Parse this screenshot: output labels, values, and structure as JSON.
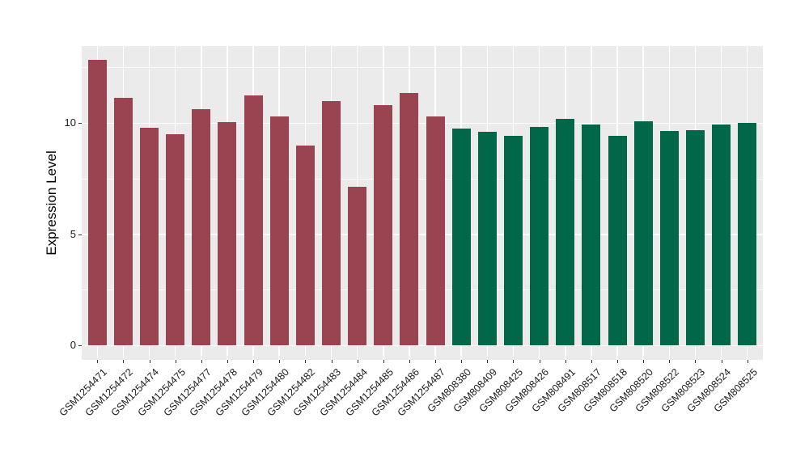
{
  "figure": {
    "background": "#FFFFFF",
    "panel_background": "#EBEBEB",
    "gridline_color": "#FFFFFF",
    "tick_color": "#333333",
    "text_color": "#1A1A1A"
  },
  "chart_data": {
    "type": "bar",
    "title": "",
    "xlabel": "",
    "ylabel": "Expression Level",
    "grid": "on",
    "legend_position": "none",
    "y_ticks": [
      0,
      5,
      10
    ],
    "y_tick_labels": [
      "0",
      "5",
      "10"
    ],
    "y_minor_ticks": [
      2.5,
      7.5,
      12.5
    ],
    "ylim": [
      0,
      13.5
    ],
    "categories": [
      "GSM1254471",
      "GSM1254472",
      "GSM1254474",
      "GSM1254475",
      "GSM1254477",
      "GSM1254478",
      "GSM1254479",
      "GSM1254480",
      "GSM1254482",
      "GSM1254483",
      "GSM1254484",
      "GSM1254485",
      "GSM1254486",
      "GSM1254487",
      "GSM808380",
      "GSM808409",
      "GSM808425",
      "GSM808426",
      "GSM808491",
      "GSM808517",
      "GSM808518",
      "GSM808520",
      "GSM808522",
      "GSM808523",
      "GSM808524",
      "GSM808525"
    ],
    "values": [
      12.85,
      11.15,
      9.8,
      9.5,
      10.65,
      10.05,
      11.25,
      10.3,
      9.0,
      11.0,
      7.15,
      10.8,
      11.35,
      10.3,
      9.75,
      9.6,
      9.45,
      9.85,
      10.2,
      9.95,
      9.45,
      10.1,
      9.65,
      9.7,
      9.95,
      10.0
    ],
    "groups": [
      "group1",
      "group1",
      "group1",
      "group1",
      "group1",
      "group1",
      "group1",
      "group1",
      "group1",
      "group1",
      "group1",
      "group1",
      "group1",
      "group1",
      "group2",
      "group2",
      "group2",
      "group2",
      "group2",
      "group2",
      "group2",
      "group2",
      "group2",
      "group2",
      "group2",
      "group2"
    ],
    "group_colors": {
      "group1": "#9A4451",
      "group2": "#006749"
    }
  }
}
